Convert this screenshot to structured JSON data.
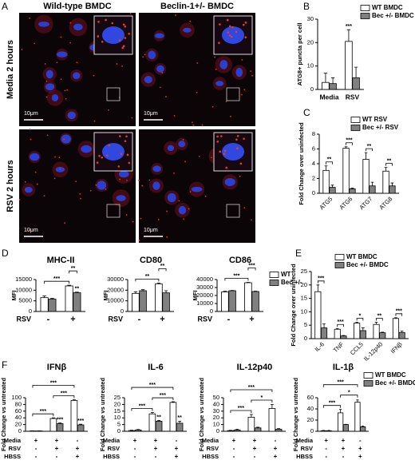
{
  "figure": {
    "panel_letters": [
      "A",
      "B",
      "C",
      "D",
      "E",
      "F"
    ],
    "columns": [
      "Wild-type BMDC",
      "Beclin-1+/- BMDC"
    ],
    "rows": [
      "Media 2 hours",
      "RSV 2 hours"
    ],
    "scale_bar": "10μm",
    "conditions": [
      {
        "name": "Media",
        "signs": [
          "+",
          "+",
          "-"
        ]
      },
      {
        "name": "RSV",
        "signs": [
          "-",
          "+",
          "+"
        ]
      },
      {
        "name": "HBSS",
        "signs": [
          "-",
          "-",
          "+"
        ]
      }
    ]
  },
  "chart_data": [
    {
      "type": "bar",
      "ylabel": "ATG8+ puncta per cell",
      "categories": [
        "Media",
        "RSV"
      ],
      "ylim": [
        0,
        30
      ],
      "yticks": [
        0,
        10,
        20,
        30
      ],
      "legend": "upper right",
      "brackets": [],
      "series": [
        {
          "name": "WT BMDC",
          "color": "#ffffff",
          "values": [
            3,
            20.5
          ],
          "errors": [
            4,
            5
          ],
          "stars": [
            null,
            "***"
          ]
        },
        {
          "name": "Bec +/- BMDC",
          "color": "#808080",
          "values": [
            2.5,
            5
          ],
          "errors": [
            2.5,
            4.5
          ]
        }
      ]
    },
    {
      "type": "bar",
      "ylabel": "Fold Change over uninfected",
      "categories": [
        "ATG5",
        "ATG6",
        "ATG7",
        "ATG8"
      ],
      "ylim": [
        0,
        8
      ],
      "yticks": [
        0,
        2,
        4,
        6,
        8
      ],
      "legend": "upper right",
      "brackets": [
        "**",
        "***",
        "**",
        "**"
      ],
      "series": [
        {
          "name": "WT RSV",
          "color": "#ffffff",
          "values": [
            3.1,
            6.1,
            4.6,
            3.0
          ],
          "errors": [
            0.6,
            0.2,
            0.9,
            0.5
          ]
        },
        {
          "name": "Bec +/- RSV",
          "color": "#808080",
          "values": [
            0.8,
            0.6,
            1.0,
            1.0
          ],
          "errors": [
            0.3,
            0.1,
            0.5,
            0.4
          ]
        }
      ]
    },
    {
      "type": "bar",
      "title": "MHC-II",
      "ylabel": "MFI",
      "xlabel": "RSV",
      "categories": [
        "-",
        "+"
      ],
      "ylim": [
        0,
        15000
      ],
      "yticks": [
        0,
        5000,
        10000,
        15000
      ],
      "brackets": [
        "***",
        "**"
      ],
      "series": [
        {
          "color": "#ffffff",
          "values": [
            6500,
            12000
          ],
          "errors": [
            800,
            300
          ]
        },
        {
          "color": "#808080",
          "values": [
            5800,
            8800
          ],
          "errors": [
            400,
            300
          ],
          "stars": [
            null,
            "**"
          ]
        }
      ]
    },
    {
      "type": "bar",
      "title": "CD80",
      "ylabel": "MFI",
      "xlabel": "RSV",
      "categories": [
        "-",
        "+"
      ],
      "ylim": [
        0,
        30000
      ],
      "yticks": [
        0,
        10000,
        20000,
        30000
      ],
      "brackets": [
        "**",
        "**"
      ],
      "series": [
        {
          "color": "#ffffff",
          "values": [
            17000,
            26000
          ],
          "errors": [
            1500,
            700
          ]
        },
        {
          "color": "#808080",
          "values": [
            19500,
            17500
          ],
          "errors": [
            1000,
            2000
          ]
        }
      ]
    },
    {
      "type": "bar",
      "title": "CD86",
      "ylabel": "MFI",
      "xlabel": "RSV",
      "categories": [
        "-",
        "+"
      ],
      "ylim": [
        0,
        40000
      ],
      "yticks": [
        0,
        10000,
        20000,
        30000,
        40000
      ],
      "legend": "upper right",
      "brackets": [
        "***",
        "***"
      ],
      "series": [
        {
          "name": "WT",
          "color": "#ffffff",
          "values": [
            24500,
            36000
          ],
          "errors": [
            800,
            500
          ]
        },
        {
          "name": "Bec +/-",
          "color": "#808080",
          "values": [
            26000,
            25000
          ],
          "errors": [
            400,
            500
          ]
        }
      ]
    },
    {
      "type": "bar",
      "ylabel": "Fold Change over uninfected",
      "categories": [
        "IL-6",
        "TNF",
        "CCL5",
        "IL-12p40",
        "IFNβ"
      ],
      "ylim": [
        0,
        25
      ],
      "yticks": [
        0,
        5,
        10,
        15,
        20,
        25
      ],
      "legend": "upper right",
      "brackets": [
        "***",
        "***",
        "*",
        "**",
        "***"
      ],
      "series": [
        {
          "name": "WT BMDC",
          "color": "#ffffff",
          "values": [
            17.5,
            3.5,
            5.8,
            5.3,
            7.5
          ],
          "errors": [
            2.5,
            0.3,
            0.3,
            0.8,
            0.3
          ]
        },
        {
          "name": "Bec +/- BMDC",
          "color": "#808080",
          "values": [
            4,
            1,
            3,
            2.2,
            2.3
          ],
          "errors": [
            1.5,
            0.2,
            1,
            0.2,
            0.5
          ]
        }
      ]
    },
    {
      "type": "bar",
      "title": "IFNβ",
      "ylabel": "Fold Change vs untreated",
      "categories": [
        null,
        null,
        null
      ],
      "ylim": [
        0,
        100
      ],
      "yticks": [
        0,
        20,
        40,
        60,
        80,
        100
      ],
      "brackets": [
        "***",
        "***",
        "***"
      ],
      "series": [
        {
          "color": "#ffffff",
          "values": [
            1,
            38,
            92
          ],
          "errors": [
            0.5,
            2,
            2
          ]
        },
        {
          "color": "#808080",
          "values": [
            1,
            23,
            19
          ],
          "errors": [
            0.5,
            2,
            2
          ],
          "stars": [
            null,
            "***",
            "***"
          ]
        }
      ]
    },
    {
      "type": "bar",
      "title": "IL-6",
      "ylabel": "Fold Change vs untreated",
      "categories": [
        null,
        null,
        null
      ],
      "ylim": [
        0,
        25
      ],
      "yticks": [
        0,
        5,
        10,
        15,
        20,
        25
      ],
      "brackets": [
        "***",
        "***",
        "***"
      ],
      "series": [
        {
          "color": "#ffffff",
          "values": [
            0.5,
            13,
            21.5
          ],
          "errors": [
            0.3,
            1,
            0.5
          ]
        },
        {
          "color": "#808080",
          "values": [
            1,
            7.5,
            6
          ],
          "errors": [
            0.3,
            0.5,
            1.5
          ],
          "stars": [
            null,
            "**",
            "**"
          ]
        }
      ]
    },
    {
      "type": "bar",
      "title": "IL-12p40",
      "ylabel": "Fold Change vs untreated",
      "categories": [
        null,
        null,
        null
      ],
      "ylim": [
        0,
        50
      ],
      "yticks": [
        0,
        10,
        20,
        30,
        40,
        50
      ],
      "brackets": [
        "***",
        "*",
        "***"
      ],
      "series": [
        {
          "color": "#ffffff",
          "values": [
            1,
            21,
            34
          ],
          "errors": [
            0.5,
            4,
            6
          ]
        },
        {
          "color": "#808080",
          "values": [
            2,
            5,
            3
          ],
          "errors": [
            1,
            1,
            1
          ]
        }
      ]
    },
    {
      "type": "bar",
      "title": "IL-1β",
      "ylabel": "Fold Change vs untreated",
      "categories": [
        null,
        null,
        null
      ],
      "ylim": [
        0,
        60
      ],
      "yticks": [
        0,
        20,
        40,
        60
      ],
      "legend": "upper right",
      "brackets": [
        "***",
        "*",
        "***"
      ],
      "series": [
        {
          "name": "WT BMDC",
          "color": "#ffffff",
          "values": [
            1,
            33,
            52
          ],
          "errors": [
            0.5,
            6,
            4
          ]
        },
        {
          "name": "Bec +/- BMDC",
          "color": "#808080",
          "values": [
            1,
            12,
            8
          ],
          "errors": [
            0.5,
            0.5,
            1.5
          ]
        }
      ]
    }
  ]
}
